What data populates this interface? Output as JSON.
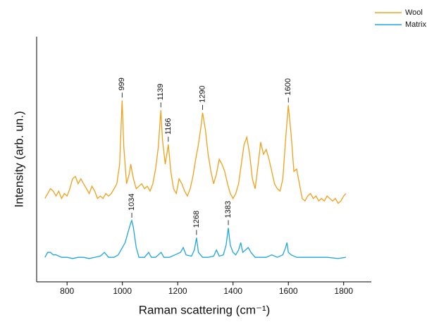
{
  "chart_data": {
    "type": "line",
    "xlabel": "Raman scattering (cm⁻¹)",
    "ylabel": "Intensity (arb. un.)",
    "xlim": [
      690,
      1900
    ],
    "xticks": [
      800,
      1000,
      1200,
      1400,
      1600,
      1800
    ],
    "ylim": [
      0,
      100
    ],
    "legend": "top-right",
    "series": [
      {
        "name": "Wool",
        "color": "#f2a01a",
        "x": [
          720,
          730,
          740,
          750,
          760,
          770,
          780,
          790,
          800,
          810,
          820,
          830,
          840,
          850,
          860,
          870,
          880,
          890,
          900,
          910,
          920,
          930,
          940,
          950,
          960,
          970,
          980,
          990,
          999,
          1005,
          1015,
          1025,
          1030,
          1040,
          1050,
          1060,
          1070,
          1080,
          1090,
          1100,
          1110,
          1120,
          1130,
          1139,
          1145,
          1155,
          1166,
          1175,
          1185,
          1195,
          1205,
          1215,
          1225,
          1235,
          1245,
          1255,
          1265,
          1275,
          1285,
          1290,
          1300,
          1310,
          1320,
          1330,
          1340,
          1350,
          1360,
          1370,
          1380,
          1390,
          1400,
          1410,
          1420,
          1430,
          1440,
          1450,
          1460,
          1470,
          1480,
          1490,
          1500,
          1510,
          1520,
          1530,
          1540,
          1550,
          1560,
          1570,
          1580,
          1590,
          1600,
          1610,
          1620,
          1630,
          1640,
          1650,
          1660,
          1670,
          1680,
          1690,
          1700,
          1710,
          1720,
          1730,
          1740,
          1750,
          1760,
          1770,
          1780,
          1790,
          1800,
          1808
        ],
        "values": [
          34,
          36,
          38,
          37,
          35,
          37,
          34,
          36,
          35,
          38,
          42,
          43,
          40,
          42,
          40,
          38,
          36,
          39,
          37,
          34,
          35,
          34,
          36,
          35,
          36,
          38,
          40,
          48,
          74,
          55,
          40,
          44,
          48,
          42,
          38,
          39,
          40,
          38,
          39,
          37,
          40,
          46,
          55,
          70,
          58,
          48,
          56,
          45,
          38,
          36,
          42,
          40,
          37,
          35,
          38,
          43,
          50,
          56,
          64,
          69,
          62,
          52,
          45,
          40,
          44,
          50,
          48,
          45,
          40,
          36,
          34,
          36,
          40,
          48,
          56,
          59,
          52,
          42,
          38,
          47,
          57,
          52,
          54,
          50,
          45,
          40,
          38,
          37,
          42,
          58,
          72,
          60,
          45,
          46,
          40,
          34,
          33,
          35,
          36,
          34,
          35,
          33,
          34,
          33,
          35,
          34,
          33,
          34,
          32,
          33,
          35,
          36
        ],
        "peaks": [
          {
            "label": "999",
            "x": 999
          },
          {
            "label": "1139",
            "x": 1139
          },
          {
            "label": "1166",
            "x": 1166
          },
          {
            "label": "1290",
            "x": 1290
          },
          {
            "label": "1600",
            "x": 1600
          }
        ]
      },
      {
        "name": "Matrix",
        "color": "#1ea6e0",
        "x": [
          720,
          730,
          740,
          750,
          760,
          780,
          800,
          820,
          840,
          860,
          880,
          900,
          920,
          935,
          950,
          970,
          985,
          1000,
          1010,
          1020,
          1030,
          1034,
          1040,
          1050,
          1060,
          1080,
          1095,
          1105,
          1120,
          1140,
          1150,
          1170,
          1190,
          1210,
          1220,
          1230,
          1250,
          1260,
          1268,
          1275,
          1290,
          1310,
          1330,
          1340,
          1350,
          1365,
          1375,
          1383,
          1390,
          1400,
          1410,
          1420,
          1428,
          1435,
          1445,
          1455,
          1465,
          1480,
          1500,
          1520,
          1540,
          1560,
          1580,
          1590,
          1595,
          1600,
          1610,
          1630,
          1660,
          1700,
          1740,
          1780,
          1808
        ],
        "values": [
          10,
          12,
          12,
          11,
          11,
          10,
          10,
          9.5,
          10,
          10,
          9.5,
          10,
          10.5,
          12,
          10,
          10,
          11,
          14,
          16,
          20,
          24,
          25,
          22,
          14,
          10,
          10,
          12,
          10,
          10,
          12,
          10,
          10,
          11,
          12,
          14,
          11,
          10.5,
          13,
          18,
          12,
          10,
          10,
          10.5,
          13,
          10.5,
          11,
          15,
          22,
          15,
          12,
          11,
          13,
          16,
          12,
          13,
          14,
          12,
          10,
          10,
          10,
          11,
          10,
          11,
          14,
          16,
          12,
          11,
          10,
          10,
          10,
          10,
          9.5,
          10
        ],
        "peaks": [
          {
            "label": "1034",
            "x": 1034
          },
          {
            "label": "1268",
            "x": 1268
          },
          {
            "label": "1383",
            "x": 1383
          }
        ]
      }
    ]
  }
}
